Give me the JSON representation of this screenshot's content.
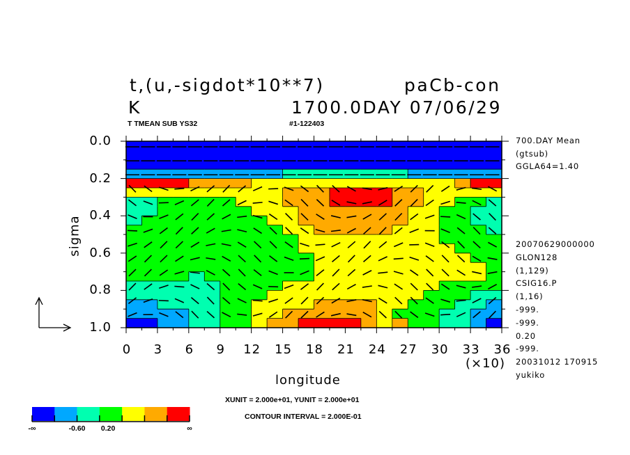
{
  "header": {
    "title_left": "t,(u,-sigdot*10**7)",
    "title_right": "paCb-con",
    "unit": "K",
    "time": "1700.0DAY 07/06/29",
    "sub_left": "T TMEAN SUB YS32",
    "sub_right": "#1-122403"
  },
  "side_info": {
    "top": [
      "700.DAY Mean",
      "(gtsub)",
      "GGLA64=1.40"
    ],
    "bottom": [
      "20070629000000",
      "GLON128",
      "(1,129)",
      "CSIG16.P",
      "(1,16)",
      "-999.",
      "-999.",
      "0.20",
      "-999.",
      "20031012 170915",
      "yukiko"
    ]
  },
  "footer": {
    "units": "XUNIT = 2.000e+01, YUNIT = 2.000e+01",
    "contour": "CONTOUR INTERVAL = 2.000E-01"
  },
  "chart_data": {
    "type": "heatmap",
    "xlabel": "longitude",
    "ylabel": "sigma",
    "x_multiplier_label": "(×10)",
    "xlim": [
      0,
      36
    ],
    "ylim": [
      0.0,
      1.0
    ],
    "y_inverted": true,
    "x_ticks": [
      "0",
      "3",
      "6",
      "9",
      "12",
      "15",
      "18",
      "21",
      "24",
      "27",
      "30",
      "33",
      "36"
    ],
    "y_ticks": [
      "0.0",
      "0.2",
      "0.4",
      "0.6",
      "0.8",
      "1.0"
    ],
    "grid": false,
    "overlay": "wind vectors (u, -sigdot*10**7)",
    "colorbar": {
      "colors": [
        "#0000ff",
        "#00a8ff",
        "#00ffb0",
        "#00ff00",
        "#ffff00",
        "#ffaa00",
        "#ff0000"
      ],
      "labels": [
        "-∞",
        "-0.60",
        "0.20",
        "∞"
      ]
    },
    "grid_lon_step_x10": 1.5,
    "grid_sigma_step": 0.05,
    "class_rows": [
      "000000000000000000000000",
      "000000000000000000000000",
      "000000000000000000000000",
      "111111111122222222111111",
      "666655554444444444444566",
      "444444444455566665544444",
      "223333344455566665544332",
      "223333334445555555443322",
      "233333333445555555443322",
      "333333333344555554443332",
      "333333333334444444443333",
      "333333333334444444444333",
      "333333333333444444444433",
      "333333333333444444444443",
      "333323333333444444444443",
      "222222333344444444443333",
      "222222333444444444433322",
      "112222334444555544333221",
      "111122334455555543332211",
      "001122334556666545332210"
    ]
  }
}
